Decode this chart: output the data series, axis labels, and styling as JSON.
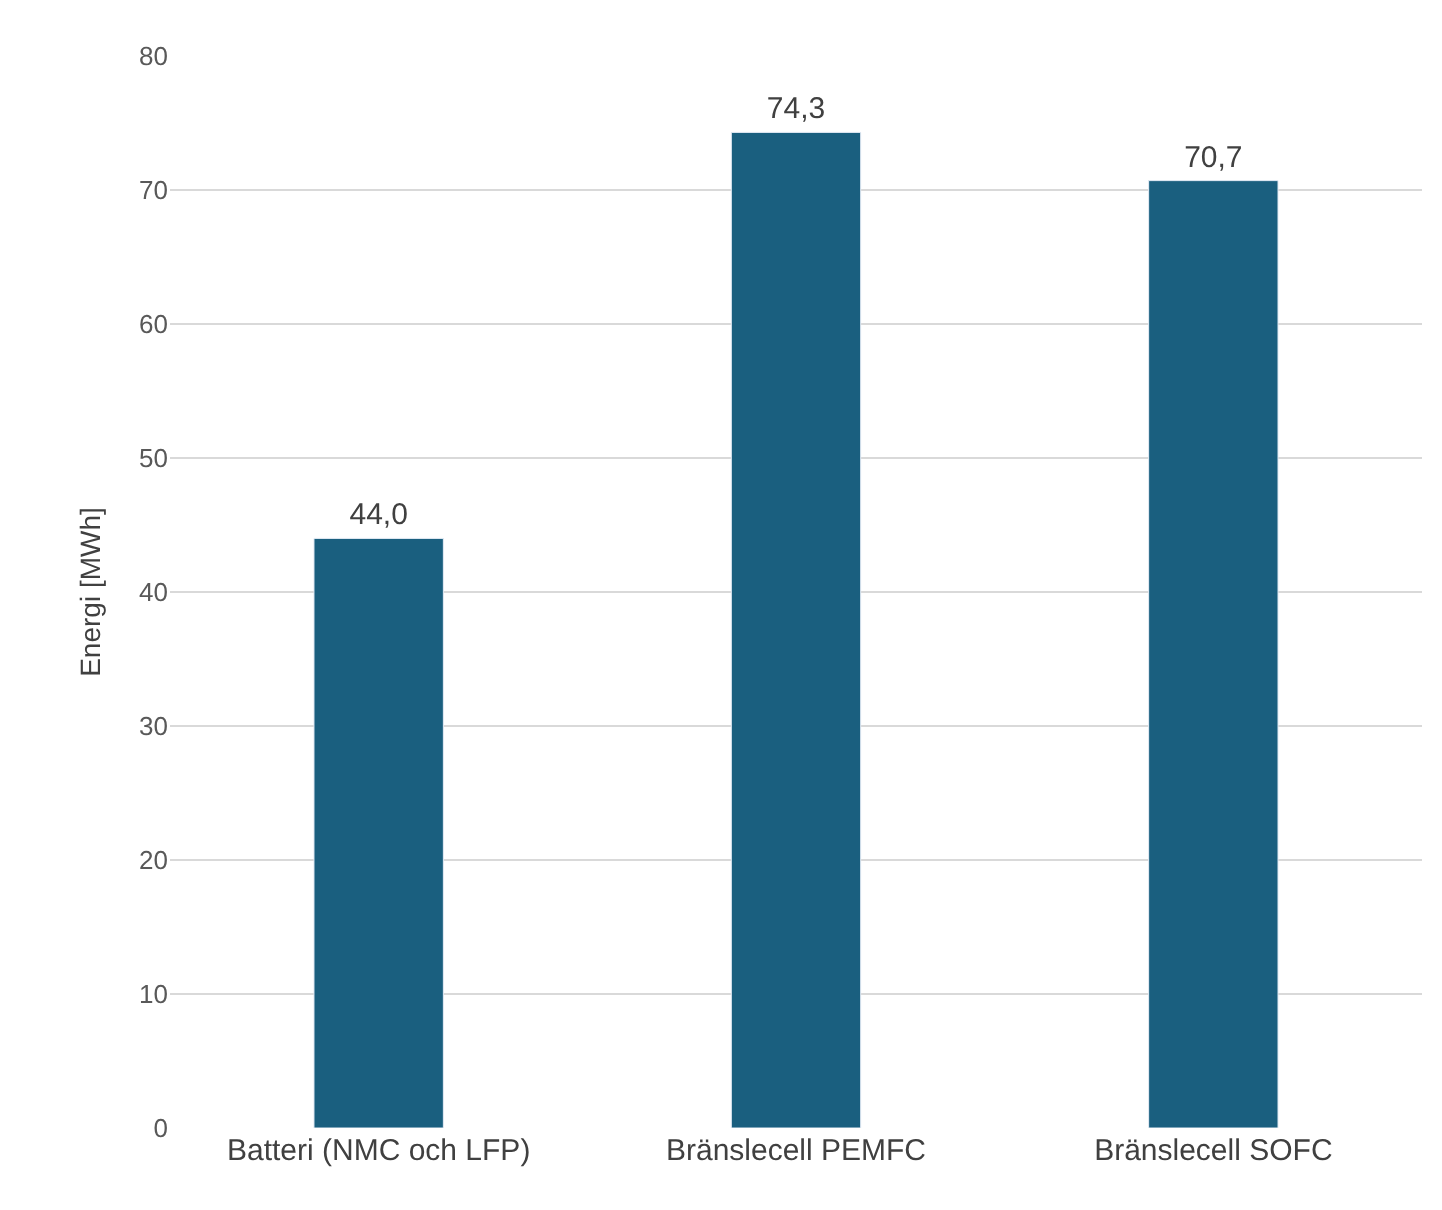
{
  "chart_data": {
    "type": "bar",
    "ylabel": "Energi [MWh]",
    "categories": [
      "Batteri (NMC och LFP)",
      "Bränslecell PEMFC",
      "Bränslecell SOFC"
    ],
    "values": [
      44.0,
      74.3,
      70.7
    ],
    "value_labels": [
      "44,0",
      "74,3",
      "70,7"
    ],
    "color": "#1a5f7f",
    "ylim": [
      0,
      80
    ],
    "yticks": [
      0,
      10,
      20,
      30,
      40,
      50,
      60,
      70,
      80
    ],
    "grid": "y"
  }
}
